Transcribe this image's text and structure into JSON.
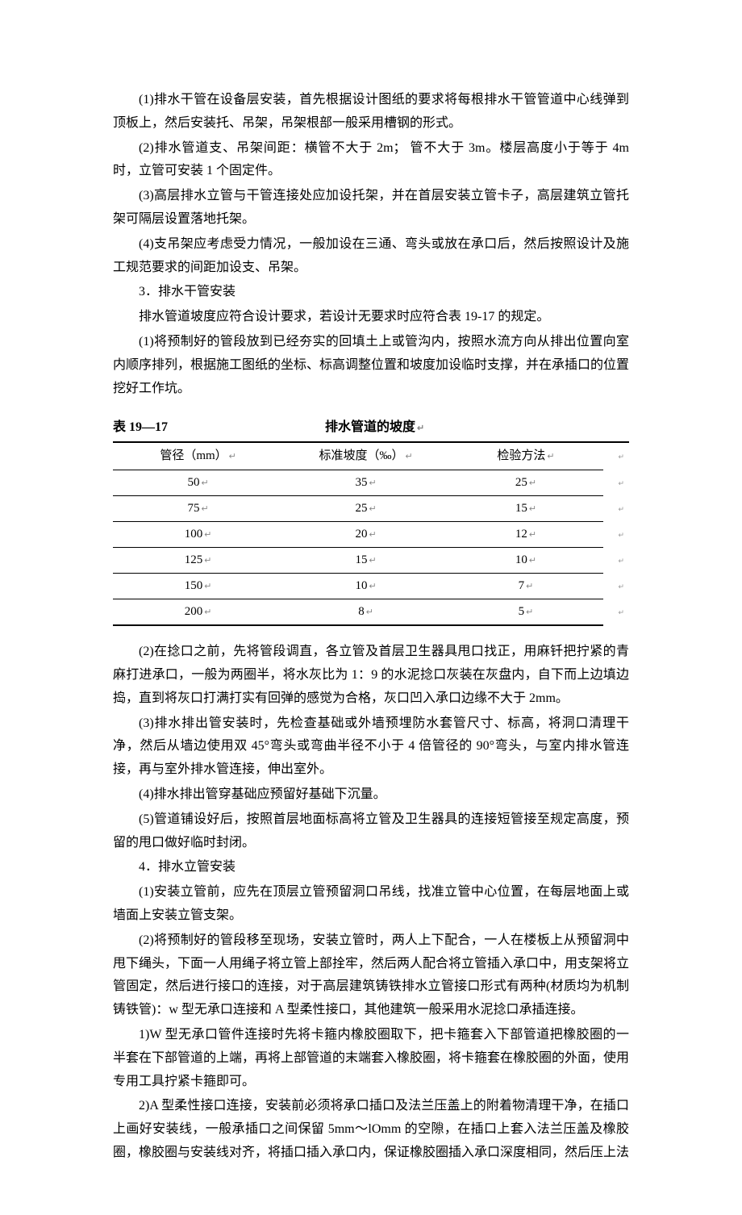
{
  "paragraphs_before": {
    "p1": "(1)排水干管在设备层安装，首先根据设计图纸的要求将每根排水干管管道中心线弹到顶板上，然后安装托、吊架，吊架根部一般采用槽钢的形式。",
    "p2": "(2)排水管道支、吊架间距：横管不大于 2m；  管不大于 3m。楼层高度小于等于 4m 时，立管可安装 1 个固定件。",
    "p3": "(3)高层排水立管与干管连接处应加设托架，并在首层安装立管卡子，高层建筑立管托架可隔层设置落地托架。",
    "p4": "(4)支吊架应考虑受力情况，一般加设在三通、弯头或放在承口后，然后按照设计及施工规范要求的间距加设支、吊架。",
    "p5": "3．排水干管安装",
    "p6": "排水管道坡度应符合设计要求，若设计无要求时应符合表 19-17 的规定。",
    "p7": "(1)将预制好的管段放到已经夯实的回填土上或管沟内，按照水流方向从排出位置向室内顺序排列，根据施工图纸的坐标、标高调整位置和坡度加设临时支撑，并在承插口的位置挖好工作坑。"
  },
  "table": {
    "number": "表 19—17",
    "title": "排水管道的坡度",
    "arrow": "↵",
    "columns": [
      "管径（mm）",
      "标准坡度（‰）",
      "检验方法"
    ],
    "rows": [
      [
        "50",
        "35",
        "25"
      ],
      [
        "75",
        "25",
        "15"
      ],
      [
        "100",
        "20",
        "12"
      ],
      [
        "125",
        "15",
        "10"
      ],
      [
        "150",
        "10",
        "7"
      ],
      [
        "200",
        "8",
        "5"
      ]
    ],
    "cell_arrow": "↵",
    "row_end_mark": "↵"
  },
  "paragraphs_after": {
    "p1": "(2)在捻口之前，先将管段调直，各立管及首层卫生器具甩口找正，用麻钎把拧紧的青麻打进承口，一般为两圈半，将水灰比为 1：9 的水泥捻口灰装在灰盘内，自下而上边填边捣，直到将灰口打满打实有回弹的感觉为合格，灰口凹入承口边缘不大于 2mm。",
    "p2": "(3)排水排出管安装时，先检查基础或外墙预埋防水套管尺寸、标高，将洞口清理干净，然后从墙边使用双 45°弯头或弯曲半径不小于 4 倍管径的 90°弯头，与室内排水管连接，再与室外排水管连接，伸出室外。",
    "p3": "(4)排水排出管穿基础应预留好基础下沉量。",
    "p4": "(5)管道铺设好后，按照首层地面标高将立管及卫生器具的连接短管接至规定高度，预留的甩口做好临时封闭。",
    "p5": "4．排水立管安装",
    "p6": "(1)安装立管前，应先在顶层立管预留洞口吊线，找准立管中心位置，在每层地面上或墙面上安装立管支架。",
    "p7": "(2)将预制好的管段移至现场，安装立管时，两人上下配合，一人在楼板上从预留洞中甩下绳头，下面一人用绳子将立管上部拴牢，然后两人配合将立管插入承口中，用支架将立管固定，然后进行接口的连接，对于高层建筑铸铁排水立管接口形式有两种(材质均为机制铸铁管)：w 型无承口连接和 A 型柔性接口，其他建筑一般采用水泥捻口承插连接。",
    "p8": "1)W 型无承口管件连接时先将卡箍内橡胶圈取下，把卡箍套入下部管道把橡胶圈的一半套在下部管道的上端，再将上部管道的末端套入橡胶圈，将卡箍套在橡胶圈的外面，使用专用工具拧紧卡箍即可。",
    "p9": "2)A 型柔性接口连接，安装前必须将承口插口及法兰压盖上的附着物清理干净，在插口上画好安装线，一般承插口之间保留 5mm～lOmm 的空隙，在插口上套入法兰压盖及橡胶圈，橡胶圈与安装线对齐，将插口插入承口内，保证橡胶圈插入承口深度相同，然后压上法"
  }
}
